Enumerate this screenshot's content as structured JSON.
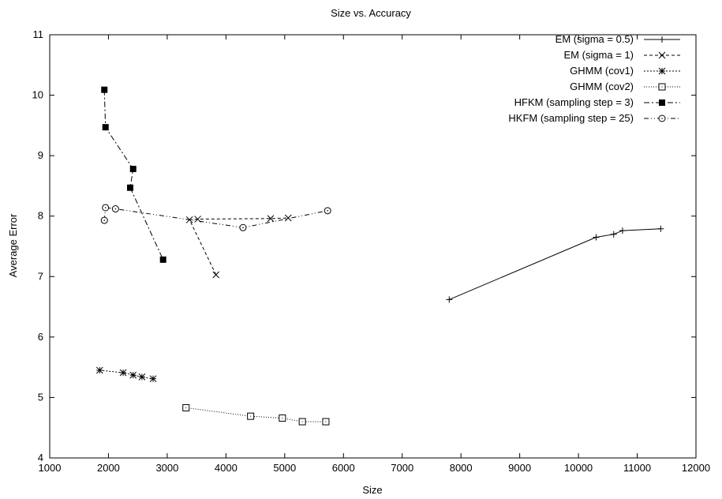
{
  "chart_data": {
    "type": "line",
    "title": "Size vs. Accuracy",
    "xlabel": "Size",
    "ylabel": "Average Error",
    "xlim": [
      1000,
      12000
    ],
    "ylim": [
      4,
      11
    ],
    "xticks": [
      1000,
      2000,
      3000,
      4000,
      5000,
      6000,
      7000,
      8000,
      9000,
      10000,
      11000,
      12000
    ],
    "yticks": [
      4,
      5,
      6,
      7,
      8,
      9,
      10,
      11
    ],
    "grid": false,
    "legend_position": "top-right",
    "series": [
      {
        "name": "EM (sigma = 0.5)",
        "line": "solid",
        "marker": "plus",
        "x": [
          7800,
          10300,
          10600,
          10750,
          11400
        ],
        "y": [
          6.62,
          7.65,
          7.7,
          7.76,
          7.79
        ]
      },
      {
        "name": "EM (sigma = 1)",
        "line": "dashed",
        "marker": "cross",
        "x": [
          3830,
          3380,
          3520,
          4760,
          5060
        ],
        "y": [
          7.03,
          7.94,
          7.95,
          7.96,
          7.97
        ]
      },
      {
        "name": "GHMM (cov1)",
        "line": "dotted-dashed-short",
        "marker": "star",
        "x": [
          1850,
          2250,
          2420,
          2570,
          2760
        ],
        "y": [
          5.45,
          5.41,
          5.37,
          5.34,
          5.31
        ]
      },
      {
        "name": "GHMM (cov2)",
        "line": "dotted",
        "marker": "open-square",
        "x": [
          3320,
          4420,
          4960,
          5300,
          5700
        ],
        "y": [
          4.83,
          4.69,
          4.66,
          4.6,
          4.6
        ]
      },
      {
        "name": "HFKM (sampling step = 3)",
        "line": "dash-dot",
        "marker": "filled-square",
        "x": [
          1930,
          1950,
          2420,
          2370,
          2930
        ],
        "y": [
          10.09,
          9.47,
          8.78,
          8.47,
          7.28
        ]
      },
      {
        "name": "HKFM (sampling step = 25)",
        "line": "dash-dot-dot",
        "marker": "open-circle-dot",
        "x": [
          1930,
          1950,
          2120,
          4290,
          5730
        ],
        "y": [
          7.93,
          8.14,
          8.12,
          7.81,
          8.09
        ]
      }
    ]
  }
}
